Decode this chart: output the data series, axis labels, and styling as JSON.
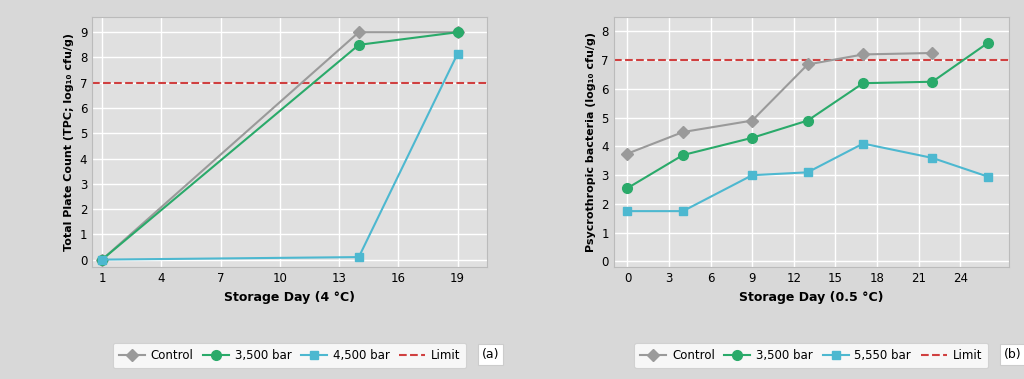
{
  "panel_a": {
    "xlabel": "Storage Day (4 °C)",
    "ylabel": "Total Plate Count (TPC; log₁₀ cfu/g)",
    "xlim": [
      0.5,
      20.5
    ],
    "ylim": [
      -0.3,
      9.6
    ],
    "xticks": [
      1,
      4,
      7,
      10,
      13,
      16,
      19
    ],
    "yticks": [
      0,
      1,
      2,
      3,
      4,
      5,
      6,
      7,
      8,
      9
    ],
    "limit_y": 7,
    "series": [
      {
        "label": "Control",
        "x": [
          1,
          14,
          19
        ],
        "y": [
          0.0,
          9.0,
          9.0
        ],
        "color": "#9a9a9a",
        "marker": "D",
        "markersize": 6,
        "linewidth": 1.5
      },
      {
        "label": "3,500 bar",
        "x": [
          1,
          14,
          19
        ],
        "y": [
          0.0,
          8.5,
          9.0
        ],
        "color": "#2aaa6a",
        "marker": "o",
        "markersize": 7,
        "linewidth": 1.5
      },
      {
        "label": "4,500 bar",
        "x": [
          1,
          14,
          19
        ],
        "y": [
          0.0,
          0.1,
          8.15
        ],
        "color": "#4db8d0",
        "marker": "s",
        "markersize": 6,
        "linewidth": 1.5
      }
    ],
    "legend_label": "(a)"
  },
  "panel_b": {
    "xlabel": "Storage Day (0.5 °C)",
    "ylabel": "Psycrothropic bacteria (log₁₀ cfu/g)",
    "xlim": [
      -1.0,
      27.5
    ],
    "ylim": [
      -0.2,
      8.5
    ],
    "xticks": [
      0,
      3,
      6,
      9,
      12,
      15,
      18,
      21,
      24
    ],
    "yticks": [
      0,
      1,
      2,
      3,
      4,
      5,
      6,
      7,
      8
    ],
    "limit_y": 7,
    "series": [
      {
        "label": "Control",
        "x": [
          0,
          4,
          9,
          13,
          17,
          22
        ],
        "y": [
          3.75,
          4.5,
          4.9,
          6.85,
          7.2,
          7.25
        ],
        "color": "#9a9a9a",
        "marker": "D",
        "markersize": 6,
        "linewidth": 1.5
      },
      {
        "label": "3,500 bar",
        "x": [
          0,
          4,
          9,
          13,
          17,
          22,
          26
        ],
        "y": [
          2.55,
          3.7,
          4.3,
          4.9,
          6.2,
          6.25,
          7.6
        ],
        "color": "#2aaa6a",
        "marker": "o",
        "markersize": 7,
        "linewidth": 1.5
      },
      {
        "label": "5,550 bar",
        "x": [
          0,
          4,
          9,
          13,
          17,
          22,
          26
        ],
        "y": [
          1.75,
          1.75,
          3.0,
          3.1,
          4.1,
          3.6,
          2.95
        ],
        "color": "#4db8d0",
        "marker": "s",
        "markersize": 6,
        "linewidth": 1.5
      }
    ],
    "legend_label": "(b)"
  },
  "fig_bg_color": "#d8d8d8",
  "plot_bg_color": "#e0e0e0",
  "grid_color": "#ffffff",
  "limit_color": "#d04040",
  "limit_linestyle": "--",
  "limit_linewidth": 1.5
}
